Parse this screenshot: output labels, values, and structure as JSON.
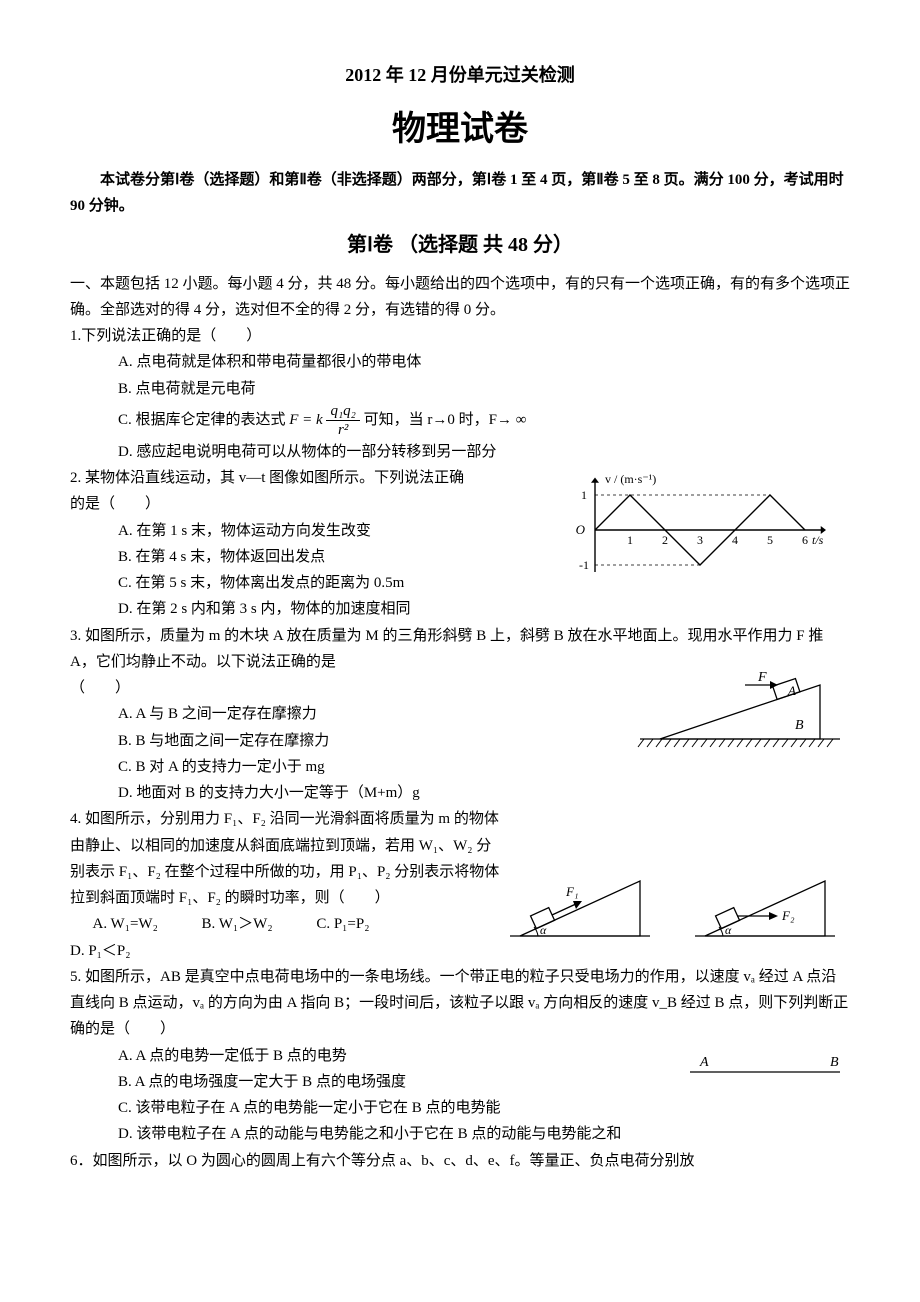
{
  "header": {
    "line1": "2012 年 12 月份单元过关检测",
    "line2": "物理试卷"
  },
  "intro": "本试卷分第Ⅰ卷（选择题）和第Ⅱ卷（非选择题）两部分，第Ⅰ卷 1 至 4 页，第Ⅱ卷 5 至 8 页。满分 100 分，考试用时 90 分钟。",
  "section": "第Ⅰ卷 （选择题  共 48 分）",
  "instructions": "一、本题包括 12 小题。每小题 4 分，共 48 分。每小题给出的四个选项中，有的只有一个选项正确，有的有多个选项正确。全部选对的得 4 分，选对但不全的得 2 分，有选错的得 0 分。",
  "q1": {
    "stem": "1.下列说法正确的是（　　）",
    "A": "A. 点电荷就是体积和带电荷量都很小的带电体",
    "B": "B. 点电荷就是元电荷",
    "C_pre": "C. 根据库仑定律的表达式",
    "C_post": " 可知，当 r→0 时，F→ ∞",
    "formula_left": "F = k",
    "formula_num": "q₁q₂",
    "formula_den": "r²",
    "D": "D. 感应起电说明电荷可以从物体的一部分转移到另一部分"
  },
  "q2": {
    "stem1": "2. 某物体沿直线运动，其 v—t 图像如图所示。下列说法正确",
    "stem2": "的是（　　）",
    "A": "A. 在第 1 s 末，物体运动方向发生改变",
    "B": "B. 在第 4 s 末，物体返回出发点",
    "C": "C. 在第 5 s 末，物体离出发点的距离为 0.5m",
    "D": "D. 在第 2 s 内和第 3 s 内，物体的加速度相同",
    "fig": {
      "ylabel": "v / (m·s⁻¹)",
      "xlabel": "t/s",
      "xticks": [
        "1",
        "2",
        "3",
        "4",
        "5",
        "6"
      ],
      "yticks": [
        "1",
        "-1"
      ],
      "axis_color": "#000",
      "line_color": "#000",
      "line_width": 1.4,
      "points": [
        [
          0,
          0
        ],
        [
          1,
          1
        ],
        [
          2,
          0
        ],
        [
          3,
          -1
        ],
        [
          4,
          0
        ],
        [
          5,
          1
        ],
        [
          6,
          0
        ]
      ],
      "xlim": [
        0,
        6.6
      ],
      "ylim": [
        -1.3,
        1.5
      ]
    }
  },
  "q3": {
    "stem": "3. 如图所示，质量为 m 的木块 A 放在质量为 M 的三角形斜劈 B 上，斜劈 B 放在水平地面上。现用水平作用力 F 推 A，它们均静止不动。以下说法正确的是",
    "blank": "（　　）",
    "A": "A. A 与 B 之间一定存在摩擦力",
    "B": "B. B 与地面之间一定存在摩擦力",
    "C": "C. B 对 A 的支持力一定小于 mg",
    "D": "D. 地面对 B 的支持力大小一定等于（M+m）g",
    "fig": {
      "labels": {
        "F": "F",
        "A": "A",
        "B": "B"
      },
      "axis_color": "#000",
      "line_width": 1.3
    }
  },
  "q4": {
    "stem": "4. 如图所示，分别用力 F₁、F₂ 沿同一光滑斜面将质量为 m 的物体由静止、以相同的加速度从斜面底端拉到顶端，若用 W₁、W₂ 分别表示 F₁、F₂ 在整个过程中所做的功，用 P₁、P₂ 分别表示将物体拉到斜面顶端时 F₁、F₂ 的瞬时功率，则（　　）",
    "A": "A. W₁=W₂",
    "B": "B. W₁＞W₂",
    "C": "C. P₁=P₂",
    "D": "D. P₁＜P₂",
    "fig": {
      "labels": {
        "F1": "F₁",
        "F2": "F₂",
        "alpha": "α"
      },
      "line_color": "#000",
      "line_width": 1.3
    }
  },
  "q5": {
    "stem": "5. 如图所示，AB 是真空中点电荷电场中的一条电场线。一个带正电的粒子只受电场力的作用，以速度 vₐ 经过 A 点沿直线向 B 点运动，vₐ 的方向为由 A 指向 B；一段时间后，该粒子以跟 vₐ 方向相反的速度 v_B 经过 B 点，则下列判断正确的是（　　）",
    "A": "A.  A 点的电势一定低于 B 点的电势",
    "B": "B.  A 点的电场强度一定大于 B 点的电场强度",
    "C": "C. 该带电粒子在 A 点的电势能一定小于它在 B 点的电势能",
    "D": "D. 该带电粒子在 A 点的动能与电势能之和小于它在 B 点的动能与电势能之和",
    "fig": {
      "A_label": "A",
      "B_label": "B",
      "line_color": "#000",
      "line_width": 1.2
    }
  },
  "q6": {
    "stem": "6．如图所示，以 O 为圆心的圆周上有六个等分点 a、b、c、d、e、f。等量正、负点电荷分别放"
  }
}
